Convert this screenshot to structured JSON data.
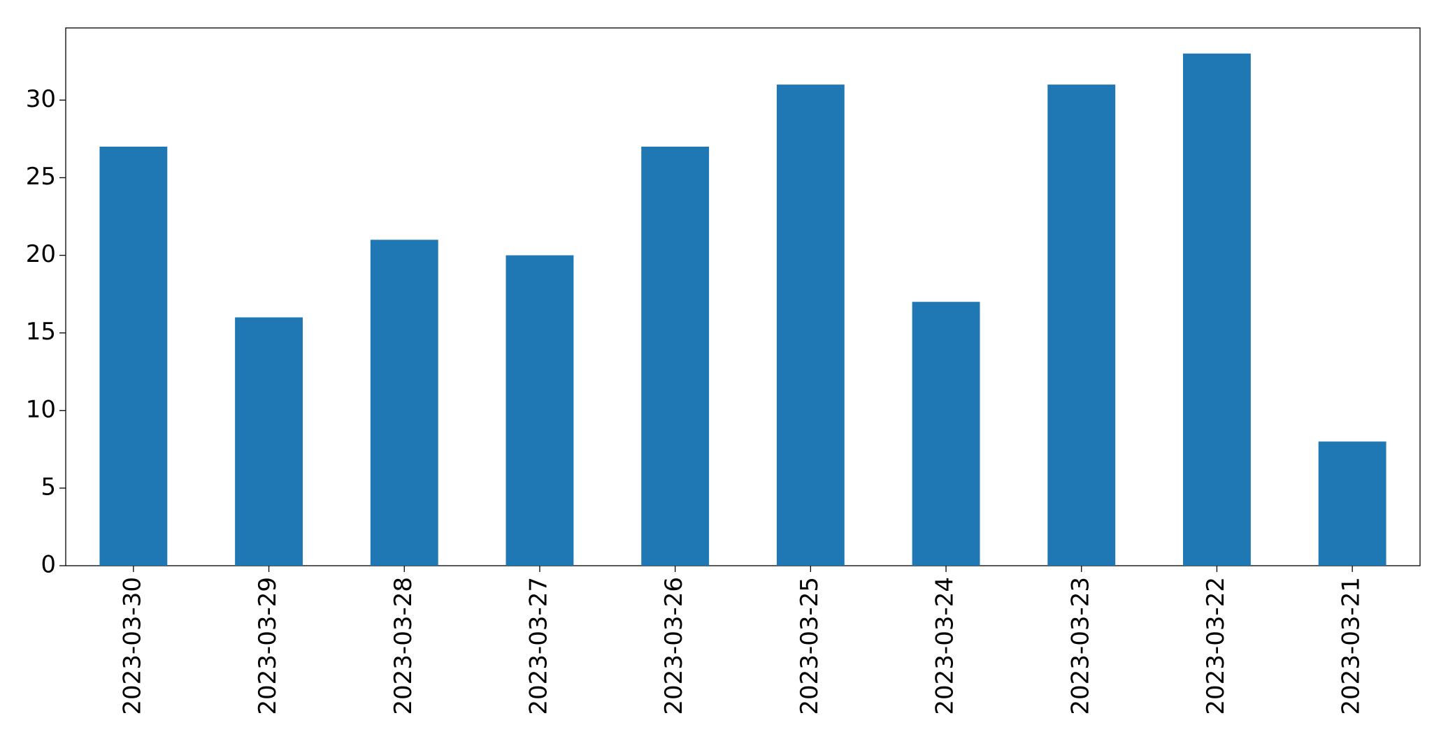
{
  "chart_data": {
    "type": "bar",
    "categories": [
      "2023-03-30",
      "2023-03-29",
      "2023-03-28",
      "2023-03-27",
      "2023-03-26",
      "2023-03-25",
      "2023-03-24",
      "2023-03-23",
      "2023-03-22",
      "2023-03-21"
    ],
    "values": [
      27,
      16,
      21,
      20,
      27,
      31,
      17,
      31,
      33,
      8
    ],
    "color": "#1f77b4",
    "ylim": [
      0,
      34.65
    ],
    "yticks": [
      0,
      5,
      10,
      15,
      20,
      25,
      30
    ],
    "grid": false
  }
}
